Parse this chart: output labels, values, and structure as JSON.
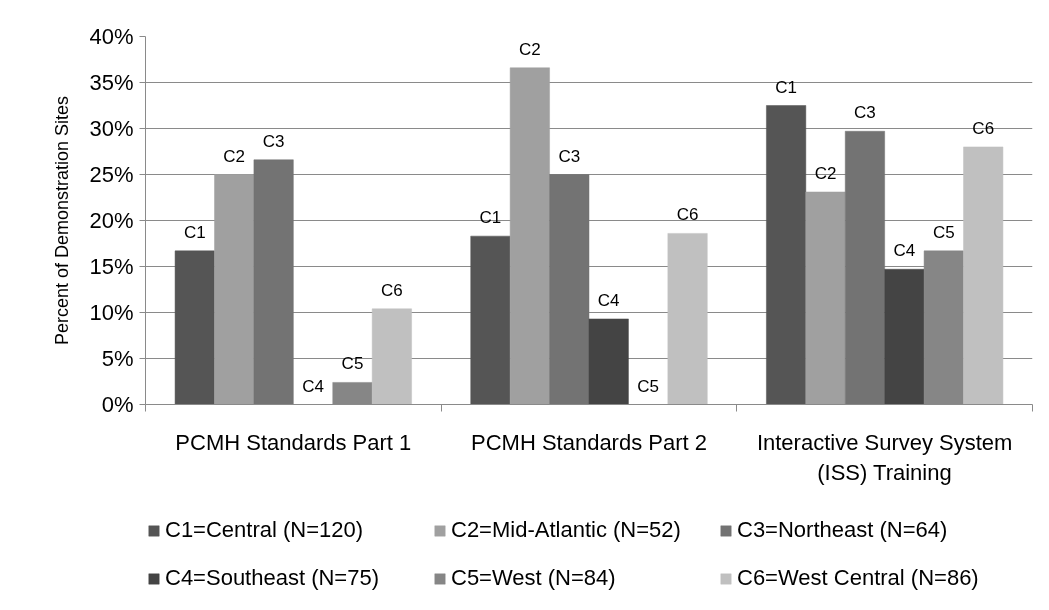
{
  "chart_data": {
    "type": "bar",
    "ylabel": "Percent of Demonstration Sites",
    "categories": [
      "PCMH Standards Part 1",
      "PCMH Standards Part 2",
      "Interactive Survey System (ISS) Training"
    ],
    "ylim": [
      0,
      40
    ],
    "yticks": [
      {
        "value": 0,
        "label": "0%"
      },
      {
        "value": 5,
        "label": "5%"
      },
      {
        "value": 10,
        "label": "10%"
      },
      {
        "value": 15,
        "label": "15%"
      },
      {
        "value": 20,
        "label": "20%"
      },
      {
        "value": 25,
        "label": "25%"
      },
      {
        "value": 30,
        "label": "30%"
      },
      {
        "value": 35,
        "label": "35%"
      },
      {
        "value": 40,
        "label": "40%"
      }
    ],
    "grid": "y",
    "legend": "bottom",
    "series": [
      {
        "name": "C1=Central (N=120)",
        "color": "#555555",
        "values": [
          16.7,
          18.3,
          32.5
        ],
        "value_labels": [
          "C1",
          "C1",
          "C1"
        ]
      },
      {
        "name": "C2=Mid-Atlantic (N=52)",
        "color": "#a0a0a0",
        "values": [
          25.0,
          36.6,
          23.1
        ],
        "value_labels": [
          "C2",
          "C2",
          "C2"
        ]
      },
      {
        "name": "C3=Northeast (N=64)",
        "color": "#737373",
        "values": [
          26.6,
          25.0,
          29.7
        ],
        "value_labels": [
          "C3",
          "C3",
          "C3"
        ]
      },
      {
        "name": "C4=Southeast (N=75)",
        "color": "#444444",
        "values": [
          0,
          9.3,
          14.7
        ],
        "value_labels": [
          "C4",
          "C4",
          "C4"
        ]
      },
      {
        "name": "C5=West (N=84)",
        "color": "#868686",
        "values": [
          2.4,
          0,
          16.7
        ],
        "value_labels": [
          "C5",
          "C5",
          "C5"
        ]
      },
      {
        "name": "C6=West Central (N=86)",
        "color": "#c0c0c0",
        "values": [
          10.4,
          18.6,
          28.0
        ],
        "value_labels": [
          "C6",
          "C6",
          "C6"
        ]
      }
    ]
  }
}
